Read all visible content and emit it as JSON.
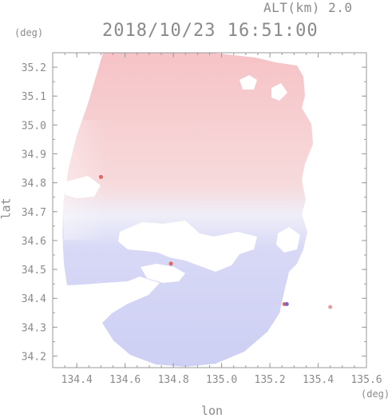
{
  "header": {
    "altitude": "ALT(km) 2.0",
    "timestamp": "2018/10/23 16:51:00"
  },
  "axes": {
    "y_unit": "(deg)",
    "x_unit": "(deg)",
    "xlabel": "lon",
    "ylabel": "lat"
  },
  "chart_data": {
    "type": "heatmap",
    "title": "2018/10/23 16:51:00",
    "subtitle": "ALT(km) 2.0",
    "xlabel": "lon",
    "ylabel": "lat",
    "xlim": [
      134.3,
      135.6
    ],
    "ylim": [
      34.16,
      35.25
    ],
    "x_ticks": [
      "134.4",
      "134.6",
      "134.8",
      "135.0",
      "135.2",
      "135.4",
      "135.6"
    ],
    "y_ticks": [
      "34.2",
      "34.3",
      "34.4",
      "34.5",
      "34.6",
      "34.7",
      "34.8",
      "34.9",
      "35.0",
      "35.1",
      "35.2"
    ],
    "x_tick_values": [
      134.4,
      134.6,
      134.8,
      135.0,
      135.2,
      135.4,
      135.6
    ],
    "y_tick_values": [
      34.2,
      34.3,
      34.4,
      34.5,
      34.6,
      34.7,
      34.8,
      34.9,
      35.0,
      35.1,
      35.2
    ],
    "colors": {
      "positive": "#f6c9cc",
      "near_zero": "#f2f1fa",
      "negative": "#cfd0f5",
      "axis": "#9a9a9a"
    },
    "isolated_points": [
      {
        "lon": 135.45,
        "lat": 34.37,
        "color": "#ef9a9a"
      },
      {
        "lon": 135.26,
        "lat": 34.38,
        "color": "#e06666"
      },
      {
        "lon": 134.79,
        "lat": 34.52,
        "color": "#e06666"
      },
      {
        "lon": 134.5,
        "lat": 34.82,
        "color": "#e06666"
      },
      {
        "lon": 135.27,
        "lat": 34.38,
        "color": "#6b6bd6"
      }
    ],
    "grid": false
  }
}
